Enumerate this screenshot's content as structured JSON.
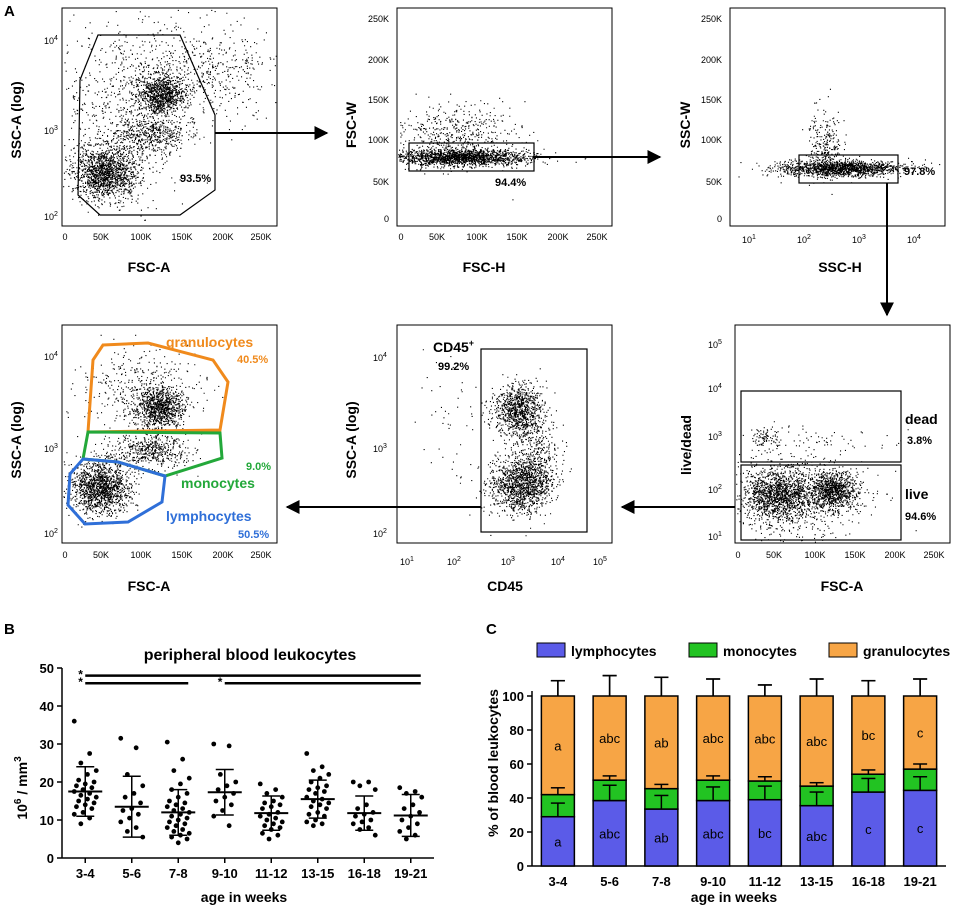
{
  "panel_labels": {
    "a": "A",
    "b": "B",
    "c": "C"
  },
  "colors": {
    "lymphocytes": "#5b5be8",
    "monocytes": "#22c322",
    "granulocytes": "#f7a545",
    "gran_gate": "#f08a1c",
    "mono_gate": "#23a83a",
    "lymph_gate": "#2f6fd8"
  },
  "flow_panels": {
    "p1": {
      "xlabel": "FSC-A",
      "ylabel": "SSC-A (log)",
      "xticks": [
        "0",
        "50K",
        "100K",
        "150K",
        "200K",
        "250K"
      ],
      "yticks": [
        "4",
        "3",
        "2"
      ],
      "gate_pct": "93.5%"
    },
    "p2": {
      "xlabel": "FSC-H",
      "ylabel": "FSC-W",
      "xticks": [
        "0",
        "50K",
        "100K",
        "150K",
        "200K",
        "250K"
      ],
      "yticks": [
        "250K",
        "200K",
        "150K",
        "100K",
        "50K",
        "0"
      ],
      "gate_pct": "94.4%"
    },
    "p3": {
      "xlabel": "SSC-H",
      "ylabel": "SSC-W",
      "xticks": [
        "1",
        "2",
        "3",
        "4"
      ],
      "yticks": [
        "250K",
        "200K",
        "150K",
        "100K",
        "50K",
        "0"
      ],
      "gate_pct": "97.8%"
    },
    "p4": {
      "xlabel": "FSC-A",
      "ylabel": "live/dead",
      "xticks": [
        "0",
        "50K",
        "100K",
        "150K",
        "200K",
        "250K"
      ],
      "yticks": [
        "5",
        "4",
        "3",
        "2",
        "1"
      ],
      "dead_label": "dead",
      "dead_pct": "3.8%",
      "live_label": "live",
      "live_pct": "94.6%"
    },
    "p5": {
      "xlabel": "CD45",
      "ylabel": "SSC-A (log)",
      "xticks": [
        "1",
        "2",
        "3",
        "4",
        "5"
      ],
      "yticks": [
        "4",
        "3",
        "2"
      ],
      "gate_name": "CD45",
      "gate_sup": "+",
      "gate_pct": "99.2%"
    },
    "p6": {
      "xlabel": "FSC-A",
      "ylabel": "SSC-A (log)",
      "xticks": [
        "0",
        "50K",
        "100K",
        "150K",
        "200K",
        "250K"
      ],
      "yticks": [
        "4",
        "3",
        "2"
      ],
      "gran_label": "granulocytes",
      "gran_pct": "40.5%",
      "mono_label": "monocytes",
      "mono_pct": "9.0%",
      "lymph_label": "lymphocytes",
      "lymph_pct": "50.5%"
    }
  },
  "chart_data": [
    {
      "type": "scatter",
      "title": "peripheral blood leukocytes",
      "xlabel": "age in weeks",
      "ylabel_base": "10",
      "ylabel_sup": "6",
      "ylabel_rest": " / mm",
      "ylabel_sup2": "3",
      "ylim": [
        0,
        50
      ],
      "yticks": [
        "0",
        "10",
        "20",
        "30",
        "40",
        "50"
      ],
      "categories": [
        "3-4",
        "5-6",
        "7-8",
        "9-10",
        "11-12",
        "13-15",
        "16-18",
        "19-21"
      ],
      "means": [
        17.5,
        13.5,
        12,
        17.3,
        11.8,
        15.5,
        11.8,
        11.2
      ],
      "sd": [
        6.5,
        8,
        6,
        6,
        4.5,
        5,
        4.5,
        5.5
      ],
      "points": [
        [
          36,
          27.5,
          25,
          23,
          22,
          20.5,
          20,
          19.5,
          19,
          18.5,
          18,
          17.5,
          17,
          16.5,
          16,
          15.5,
          15,
          14.5,
          14,
          13.5,
          13,
          12,
          11.5,
          10.5,
          9
        ],
        [
          31.5,
          29,
          22,
          19,
          17,
          16,
          14.5,
          13,
          12.5,
          11.5,
          10.5,
          9.5,
          8,
          7,
          5.5
        ],
        [
          30.5,
          26,
          23,
          21,
          19.5,
          18,
          17,
          16,
          15,
          14.5,
          14,
          13.5,
          13,
          12.5,
          12,
          11.5,
          11,
          10.5,
          10,
          9.5,
          9,
          8.5,
          8,
          7.5,
          7,
          6.5,
          6,
          5.5,
          5,
          4
        ],
        [
          30,
          29.5,
          22,
          20,
          19,
          18,
          17,
          16,
          15,
          14,
          12.5,
          11,
          8.5
        ],
        [
          19.5,
          18,
          17,
          16,
          15,
          14.5,
          14,
          13.5,
          13,
          12,
          11.5,
          11,
          10.5,
          10,
          9.5,
          9,
          8.5,
          8,
          7.5,
          6.5,
          6,
          5
        ],
        [
          27.5,
          24,
          23,
          22,
          21,
          20,
          19,
          18.5,
          18,
          17.5,
          17,
          16,
          15.5,
          15,
          14.5,
          14,
          13.5,
          13,
          12,
          11.5,
          11,
          10,
          9.5,
          9,
          8.5
        ],
        [
          20,
          20,
          19,
          18,
          14,
          13,
          12,
          11.5,
          11,
          10,
          9.5,
          9,
          8,
          7.5,
          6
        ],
        [
          18.5,
          17.5,
          17,
          16,
          14,
          13,
          12,
          11,
          10,
          9,
          8,
          7,
          6,
          5
        ]
      ],
      "significance": [
        {
          "label": "*",
          "from": "3-4",
          "to": "19-21",
          "y": 48
        },
        {
          "label": "*",
          "from": "3-4",
          "to": "7-8",
          "y": 46
        },
        {
          "label": "*",
          "from": "9-10",
          "to": "19-21",
          "y": 46
        }
      ]
    },
    {
      "type": "bar",
      "stacked": true,
      "xlabel": "age in weeks",
      "ylabel": "% of blood leukocytes",
      "ylim": [
        0,
        100
      ],
      "yticks": [
        "0",
        "20",
        "40",
        "60",
        "80",
        "100"
      ],
      "categories": [
        "3-4",
        "5-6",
        "7-8",
        "9-10",
        "11-12",
        "13-15",
        "16-18",
        "19-21"
      ],
      "series": [
        {
          "name": "lymphocytes",
          "values": [
            29,
            38.5,
            33.5,
            38.5,
            39,
            35.5,
            43.5,
            44.5
          ],
          "err": [
            8,
            9,
            8,
            8,
            8,
            8,
            8,
            8
          ],
          "letters": [
            "a",
            "abc",
            "ab",
            "abc",
            "bc",
            "abc",
            "c",
            "c"
          ]
        },
        {
          "name": "monocytes",
          "values": [
            13,
            12,
            12,
            12,
            11,
            11.5,
            10.5,
            12.5
          ],
          "err": [
            4,
            2.5,
            2.5,
            2.5,
            2.5,
            2,
            2.5,
            3
          ],
          "letters": []
        },
        {
          "name": "granulocytes",
          "values": [
            58,
            49.5,
            54.5,
            49.5,
            50,
            53,
            46,
            43
          ],
          "err": [
            9,
            12,
            11,
            10,
            6.5,
            10,
            9,
            10
          ],
          "letters": [
            "a",
            "abc",
            "ab",
            "abc",
            "abc",
            "abc",
            "bc",
            "c"
          ]
        }
      ]
    }
  ]
}
